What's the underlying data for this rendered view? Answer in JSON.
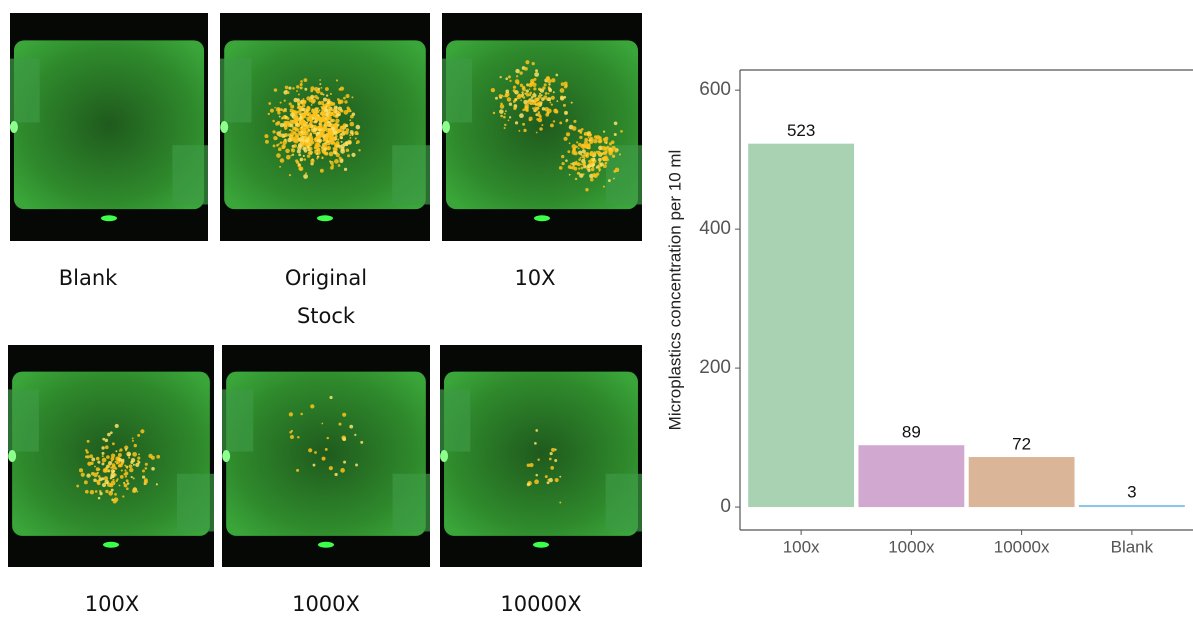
{
  "panels": [
    "Blank",
    "Original Stock",
    "10X",
    "100X",
    "1000X",
    "10000X"
  ],
  "chart_data": {
    "type": "bar",
    "y_label": "Microplastics concentration per 10 ml",
    "categories": [
      "100x",
      "1000x",
      "10000x",
      "Blank"
    ],
    "values": [
      523,
      89,
      72,
      3
    ],
    "colors": [
      "#a9d2b2",
      "#d1a8cf",
      "#dbb597",
      "#8dc6e6"
    ],
    "ylim": [
      -33,
      629
    ],
    "yticks": [
      0,
      200,
      400,
      600
    ],
    "grid": false
  }
}
